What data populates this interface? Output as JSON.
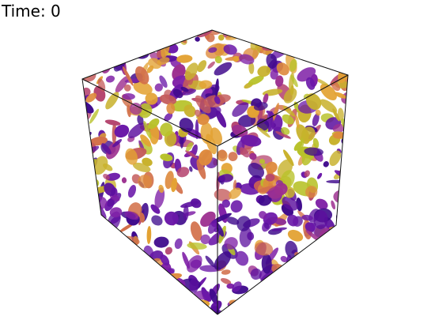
{
  "annotation": {
    "text": "Time: 0"
  }
}
